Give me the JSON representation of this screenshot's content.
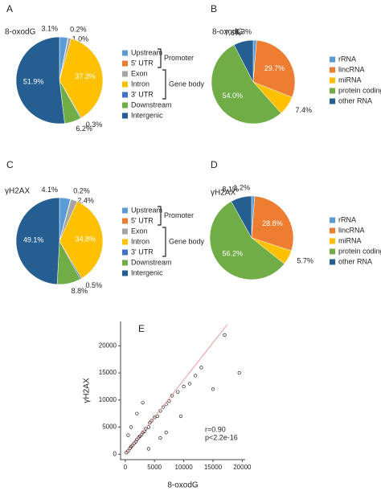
{
  "chart_data": [
    {
      "type": "pie",
      "label": "A",
      "title": "8-oxodG",
      "categories": [
        "Upstream",
        "5' UTR",
        "Exon",
        "Intron",
        "3' UTR",
        "Downstream",
        "Intergenic"
      ],
      "values": [
        3.1,
        0.2,
        1.0,
        37.3,
        0.3,
        6.2,
        51.9
      ],
      "value_labels": [
        "3.1%",
        "0.2%",
        "1.0%",
        "37.3%",
        "0.3%",
        "6.2%",
        "51.9%"
      ],
      "colors": [
        "#5b9bd5",
        "#ed7d31",
        "#a5a5a5",
        "#ffc000",
        "#4472c4",
        "#70ad47",
        "#255e91"
      ],
      "annotations": [
        "Promoter",
        "Gene body"
      ]
    },
    {
      "type": "pie",
      "label": "B",
      "title": "8-oxodG",
      "categories": [
        "rRNA",
        "lincRNA",
        "miRNA",
        "protein coding",
        "other RNA"
      ],
      "values": [
        1.3,
        29.7,
        7.4,
        54.0,
        7.6
      ],
      "value_labels": [
        "1.3%",
        "29.7%",
        "7.4%",
        "54.0%",
        "7.6%"
      ],
      "colors": [
        "#5b9bd5",
        "#ed7d31",
        "#ffc000",
        "#70ad47",
        "#255e91"
      ]
    },
    {
      "type": "pie",
      "label": "C",
      "title": "γH2AX",
      "categories": [
        "Upstream",
        "5' UTR",
        "Exon",
        "Intron",
        "3' UTR",
        "Downstream",
        "Intergenic"
      ],
      "values": [
        4.1,
        0.2,
        2.4,
        34.8,
        0.5,
        8.8,
        49.1
      ],
      "value_labels": [
        "4.1%",
        "0.2%",
        "2.4%",
        "34.8%",
        "0.5%",
        "8.8%",
        "49.1%"
      ],
      "colors": [
        "#5b9bd5",
        "#ed7d31",
        "#a5a5a5",
        "#ffc000",
        "#4472c4",
        "#70ad47",
        "#255e91"
      ],
      "annotations": [
        "Promoter",
        "Gene body"
      ]
    },
    {
      "type": "pie",
      "label": "D",
      "title": "γH2AX",
      "categories": [
        "rRNA",
        "lincRNA",
        "miRNA",
        "protein coding",
        "other RNA"
      ],
      "values": [
        1.2,
        28.8,
        5.7,
        56.2,
        8.1
      ],
      "value_labels": [
        "1.2%",
        "28.8%",
        "5.7%",
        "56.2%",
        "8.1%"
      ],
      "colors": [
        "#5b9bd5",
        "#ed7d31",
        "#ffc000",
        "#70ad47",
        "#255e91"
      ]
    },
    {
      "type": "scatter",
      "label": "E",
      "xlabel": "8-oxodG",
      "ylabel": "γH2AX",
      "color": "#000000",
      "fit_color": "#e89a9a",
      "x": [
        200,
        500,
        800,
        1000,
        1200,
        1500,
        1800,
        2000,
        2300,
        2500,
        2800,
        3000,
        3300,
        3500,
        4000,
        4200,
        4500,
        5000,
        5500,
        6000,
        6500,
        7000,
        7500,
        8000,
        9000,
        10000,
        11000,
        12000,
        13000,
        1000,
        2000,
        3000,
        500,
        7000,
        15000,
        17000,
        19500,
        9500,
        4000,
        6000
      ],
      "values": [
        300,
        600,
        1100,
        1400,
        1600,
        2000,
        2300,
        2700,
        3100,
        3300,
        3600,
        4000,
        4200,
        4700,
        5000,
        5800,
        6200,
        6800,
        7000,
        8000,
        8700,
        9200,
        9800,
        10800,
        11500,
        12500,
        13000,
        14500,
        16000,
        5000,
        7500,
        9500,
        3500,
        4000,
        12000,
        22000,
        15000,
        7000,
        1000,
        3000
      ],
      "fit": {
        "x": [
          0,
          17500
        ],
        "values": [
          0,
          24000
        ]
      },
      "xlim": [
        -800,
        20500
      ],
      "ylim": [
        -1000,
        24500
      ],
      "xticks": [
        0,
        5000,
        10000,
        15000,
        20000
      ],
      "yticks": [
        0,
        5000,
        10000,
        15000,
        20000
      ],
      "annotations": [
        "r=0.90",
        "p<2.2e-16"
      ]
    }
  ]
}
